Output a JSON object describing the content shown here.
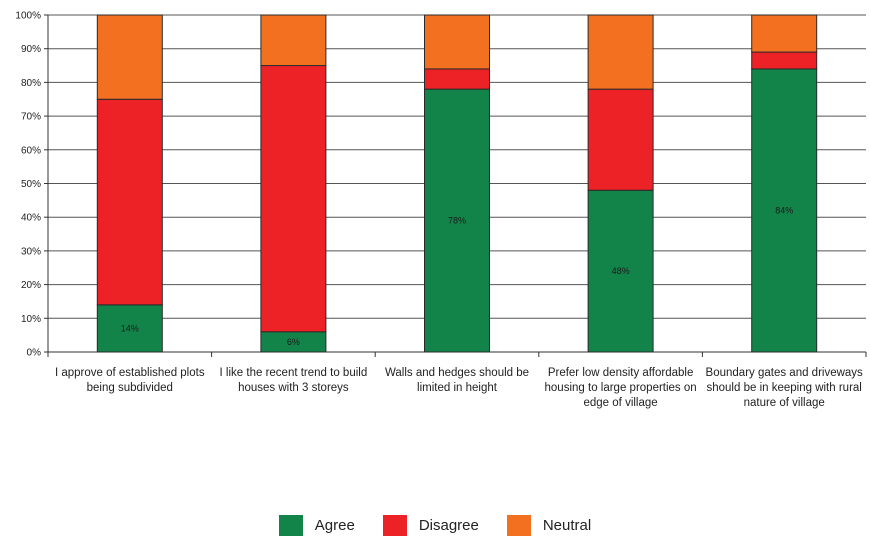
{
  "chart_data": {
    "type": "bar",
    "stacked": true,
    "categories": [
      "I approve of established plots being subdivided",
      "I like the recent trend to build houses with 3 storeys",
      "Walls and hedges should be limited in height",
      "Prefer low density affordable housing to large properties on edge of village",
      "Boundary gates and driveways should be in keeping with rural nature of village"
    ],
    "series": [
      {
        "name": "Agree",
        "color": "#138449",
        "values": [
          14,
          6,
          78,
          48,
          84
        ]
      },
      {
        "name": "Disagree",
        "color": "#ed2227",
        "values": [
          61,
          79,
          6,
          30,
          5
        ]
      },
      {
        "name": "Neutral",
        "color": "#f37021",
        "values": [
          25,
          15,
          16,
          22,
          11
        ]
      }
    ],
    "data_labels": [
      "14%",
      "6%",
      "78%",
      "48%",
      "84%"
    ],
    "yticks": [
      "0%",
      "10%",
      "20%",
      "30%",
      "40%",
      "50%",
      "60%",
      "70%",
      "80%",
      "90%",
      "100%"
    ],
    "ylim": [
      0,
      100
    ],
    "grid": true,
    "legend_position": "bottom"
  }
}
